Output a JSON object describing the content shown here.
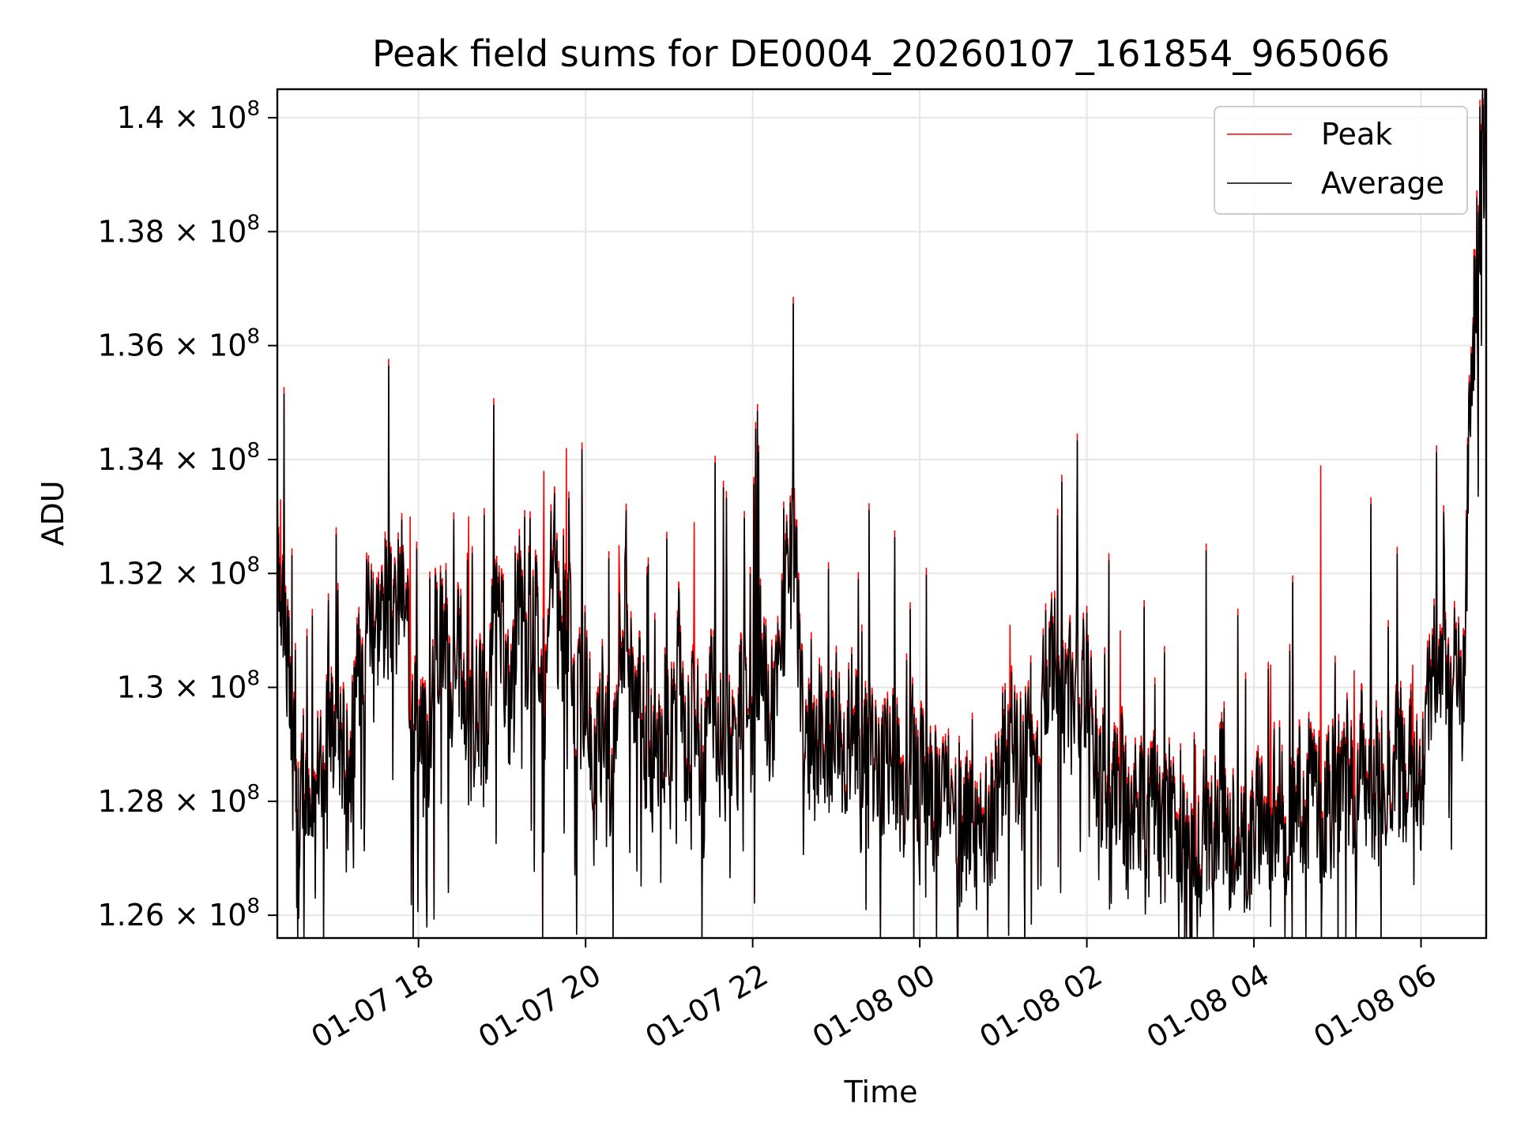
{
  "chart_data": {
    "type": "line",
    "title": "Peak field sums for DE0004_20260107_161854_965066",
    "xlabel": "Time",
    "ylabel": "ADU",
    "xlim_hours": [
      16.31,
      30.78
    ],
    "ylim": [
      125.6,
      140.5
    ],
    "y_scale_exponent": 8,
    "x_ticks": [
      {
        "label": "01-07 18",
        "hour": 18
      },
      {
        "label": "01-07 20",
        "hour": 20
      },
      {
        "label": "01-07 22",
        "hour": 22
      },
      {
        "label": "01-08 00",
        "hour": 24
      },
      {
        "label": "01-08 02",
        "hour": 26
      },
      {
        "label": "01-08 04",
        "hour": 28
      },
      {
        "label": "01-08 06",
        "hour": 30
      }
    ],
    "y_ticks": [
      {
        "mantissa": "1.26",
        "value": 126
      },
      {
        "mantissa": "1.28",
        "value": 128
      },
      {
        "mantissa": "1.3",
        "value": 130
      },
      {
        "mantissa": "1.32",
        "value": 132
      },
      {
        "mantissa": "1.34",
        "value": 134
      },
      {
        "mantissa": "1.36",
        "value": 136
      },
      {
        "mantissa": "1.38",
        "value": 138
      },
      {
        "mantissa": "1.4",
        "value": 140
      }
    ],
    "y_tick_times": "×",
    "y_tick_base": "10",
    "y_tick_exp": "8",
    "grid": true,
    "legend": {
      "position": "upper right",
      "entries": [
        {
          "label": "Peak",
          "color": "#ff0000"
        },
        {
          "label": "Average",
          "color": "#000000"
        }
      ]
    },
    "series": [
      {
        "name": "Average",
        "color": "#000000",
        "note": "values in units of 1e6 ADU; approximate trend read from the figure",
        "points": [
          [
            16.31,
            132.6
          ],
          [
            16.38,
            131.6
          ],
          [
            16.45,
            130.0
          ],
          [
            16.52,
            127.8
          ],
          [
            16.6,
            128.1
          ],
          [
            16.7,
            127.5
          ],
          [
            16.8,
            128.3
          ],
          [
            16.9,
            129.2
          ],
          [
            17.0,
            129.5
          ],
          [
            17.1,
            129.0
          ],
          [
            17.2,
            128.8
          ],
          [
            17.3,
            130.5
          ],
          [
            17.4,
            131.6
          ],
          [
            17.5,
            131.2
          ],
          [
            17.6,
            131.5
          ],
          [
            17.7,
            131.0
          ],
          [
            17.8,
            131.9
          ],
          [
            17.9,
            130.2
          ],
          [
            18.0,
            129.3
          ],
          [
            18.1,
            128.6
          ],
          [
            18.2,
            130.8
          ],
          [
            18.3,
            131.2
          ],
          [
            18.4,
            129.9
          ],
          [
            18.5,
            130.7
          ],
          [
            18.6,
            128.9
          ],
          [
            18.7,
            129.7
          ],
          [
            18.8,
            129.0
          ],
          [
            18.9,
            131.1
          ],
          [
            19.0,
            130.8
          ],
          [
            19.1,
            129.6
          ],
          [
            19.2,
            131.9
          ],
          [
            19.3,
            130.0
          ],
          [
            19.4,
            131.5
          ],
          [
            19.5,
            129.4
          ],
          [
            19.6,
            132.3
          ],
          [
            19.7,
            130.6
          ],
          [
            19.8,
            131.0
          ],
          [
            19.9,
            129.5
          ],
          [
            20.0,
            130.2
          ],
          [
            20.1,
            128.0
          ],
          [
            20.2,
            129.8
          ],
          [
            20.3,
            128.5
          ],
          [
            20.4,
            130.6
          ],
          [
            20.5,
            131.4
          ],
          [
            20.6,
            130.0
          ],
          [
            20.7,
            129.2
          ],
          [
            20.8,
            128.7
          ],
          [
            20.9,
            129.0
          ],
          [
            21.0,
            128.4
          ],
          [
            21.1,
            130.8
          ],
          [
            21.2,
            128.8
          ],
          [
            21.3,
            129.8
          ],
          [
            21.4,
            128.5
          ],
          [
            21.5,
            130.0
          ],
          [
            21.6,
            128.9
          ],
          [
            21.7,
            129.6
          ],
          [
            21.8,
            128.8
          ],
          [
            21.9,
            130.3
          ],
          [
            22.0,
            129.2
          ],
          [
            22.1,
            130.6
          ],
          [
            22.2,
            129.4
          ],
          [
            22.3,
            130.1
          ],
          [
            22.4,
            131.6
          ],
          [
            22.5,
            132.3
          ],
          [
            22.6,
            129.6
          ],
          [
            22.7,
            128.6
          ],
          [
            22.8,
            129.2
          ],
          [
            22.9,
            128.7
          ],
          [
            23.0,
            129.7
          ],
          [
            23.1,
            128.8
          ],
          [
            23.2,
            129.6
          ],
          [
            23.3,
            128.4
          ],
          [
            23.4,
            129.5
          ],
          [
            23.5,
            128.2
          ],
          [
            23.6,
            128.8
          ],
          [
            23.7,
            128.6
          ],
          [
            23.8,
            128.2
          ],
          [
            23.9,
            129.0
          ],
          [
            24.0,
            128.4
          ],
          [
            24.1,
            128.5
          ],
          [
            24.2,
            127.8
          ],
          [
            24.3,
            128.2
          ],
          [
            24.4,
            128.6
          ],
          [
            24.5,
            127.0
          ],
          [
            24.6,
            127.8
          ],
          [
            24.7,
            127.2
          ],
          [
            24.8,
            127.6
          ],
          [
            24.9,
            127.9
          ],
          [
            25.0,
            128.7
          ],
          [
            25.1,
            129.0
          ],
          [
            25.2,
            128.5
          ],
          [
            25.3,
            129.6
          ],
          [
            25.4,
            129.0
          ],
          [
            25.5,
            130.2
          ],
          [
            25.6,
            130.5
          ],
          [
            25.7,
            129.4
          ],
          [
            25.8,
            130.0
          ],
          [
            25.9,
            129.5
          ],
          [
            26.0,
            130.3
          ],
          [
            26.1,
            128.8
          ],
          [
            26.2,
            128.2
          ],
          [
            26.3,
            127.8
          ],
          [
            26.4,
            128.5
          ],
          [
            26.5,
            127.4
          ],
          [
            26.6,
            128.3
          ],
          [
            26.7,
            127.2
          ],
          [
            26.8,
            128.1
          ],
          [
            26.9,
            127.3
          ],
          [
            27.0,
            127.9
          ],
          [
            27.1,
            127.5
          ],
          [
            27.2,
            126.8
          ],
          [
            27.3,
            126.4
          ],
          [
            27.4,
            127.8
          ],
          [
            27.5,
            127.2
          ],
          [
            27.6,
            128.0
          ],
          [
            27.7,
            127.0
          ],
          [
            27.8,
            127.6
          ],
          [
            27.9,
            126.9
          ],
          [
            28.0,
            127.4
          ],
          [
            28.1,
            127.9
          ],
          [
            28.2,
            127.1
          ],
          [
            28.3,
            128.3
          ],
          [
            28.4,
            127.5
          ],
          [
            28.5,
            128.6
          ],
          [
            28.6,
            127.3
          ],
          [
            28.7,
            128.8
          ],
          [
            28.8,
            127.6
          ],
          [
            28.9,
            128.3
          ],
          [
            29.0,
            127.8
          ],
          [
            29.1,
            128.6
          ],
          [
            29.2,
            127.9
          ],
          [
            29.3,
            128.8
          ],
          [
            29.4,
            128.0
          ],
          [
            29.5,
            128.5
          ],
          [
            29.6,
            128.3
          ],
          [
            29.7,
            128.7
          ],
          [
            29.8,
            128.2
          ],
          [
            29.9,
            128.9
          ],
          [
            30.0,
            128.4
          ],
          [
            30.1,
            129.8
          ],
          [
            30.2,
            130.6
          ],
          [
            30.3,
            129.9
          ],
          [
            30.4,
            130.4
          ],
          [
            30.5,
            129.6
          ],
          [
            30.6,
            135.5
          ],
          [
            30.68,
            137.8
          ],
          [
            30.74,
            139.2
          ],
          [
            30.78,
            140.2
          ]
        ]
      },
      {
        "name": "Peak",
        "color": "#ff0000",
        "note": "nearly identical to Average; offset plus notable spikes",
        "offset": 0.12,
        "spikes": [
          [
            16.35,
            133.3
          ],
          [
            17.9,
            133.0
          ],
          [
            18.6,
            133.0
          ],
          [
            19.5,
            133.8
          ],
          [
            19.77,
            134.2
          ],
          [
            20.4,
            132.5
          ],
          [
            21.3,
            132.9
          ],
          [
            22.03,
            133.1
          ],
          [
            22.5,
            133.5
          ],
          [
            25.08,
            131.1
          ],
          [
            26.4,
            131.0
          ],
          [
            27.3,
            129.0
          ],
          [
            28.2,
            130.4
          ],
          [
            28.8,
            133.9
          ],
          [
            29.2,
            130.3
          ],
          [
            29.9,
            130.4
          ]
        ]
      }
    ]
  }
}
